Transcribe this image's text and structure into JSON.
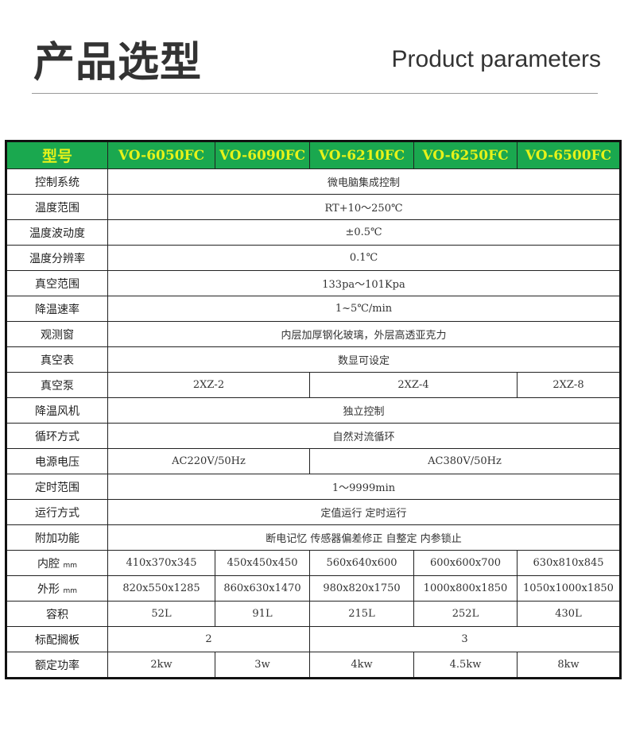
{
  "header": {
    "title_cn": "产品选型",
    "title_en": "Product parameters"
  },
  "colors": {
    "header_bg": "#1aa84f",
    "header_text": "#e6f21a"
  },
  "table": {
    "header": [
      "型号",
      "VO-6050FC",
      "VO-6090FC",
      "VO-6210FC",
      "VO-6250FC",
      "VO-6500FC"
    ],
    "rows": [
      {
        "label": "控制系统",
        "cells": [
          {
            "text": "微电脑集成控制",
            "span": 5
          }
        ]
      },
      {
        "label": "温度范围",
        "cells": [
          {
            "text": "RT+10～250℃",
            "span": 5
          }
        ]
      },
      {
        "label": "温度波动度",
        "cells": [
          {
            "text": "±0.5℃",
            "span": 5
          }
        ]
      },
      {
        "label": "温度分辨率",
        "cells": [
          {
            "text": "0.1℃",
            "span": 5
          }
        ]
      },
      {
        "label": "真空范围",
        "cells": [
          {
            "text": "133pa～101Kpa",
            "span": 5
          }
        ]
      },
      {
        "label": "降温速率",
        "cells": [
          {
            "text": "1~5℃/min",
            "span": 5
          }
        ]
      },
      {
        "label": "观测窗",
        "cells": [
          {
            "text": "内层加厚钢化玻璃，外层高透亚克力",
            "span": 5
          }
        ]
      },
      {
        "label": "真空表",
        "cells": [
          {
            "text": "数显可设定",
            "span": 5
          }
        ]
      },
      {
        "label": "真空泵",
        "cells": [
          {
            "text": "2XZ-2",
            "span": 2
          },
          {
            "text": "2XZ-4",
            "span": 2
          },
          {
            "text": "2XZ-8",
            "span": 1
          }
        ]
      },
      {
        "label": "降温风机",
        "cells": [
          {
            "text": "独立控制",
            "span": 5
          }
        ]
      },
      {
        "label": "循环方式",
        "cells": [
          {
            "text": "自然对流循环",
            "span": 5
          }
        ]
      },
      {
        "label": "电源电压",
        "cells": [
          {
            "text": "AC220V/50Hz",
            "span": 2
          },
          {
            "text": "AC380V/50Hz",
            "span": 3
          }
        ]
      },
      {
        "label": "定时范围",
        "cells": [
          {
            "text": "1～9999min",
            "span": 5
          }
        ]
      },
      {
        "label": "运行方式",
        "cells": [
          {
            "text": "定值运行 定时运行",
            "span": 5
          }
        ]
      },
      {
        "label": "附加功能",
        "cells": [
          {
            "text": "断电记忆 传感器偏差修正 自整定 内参锁止",
            "span": 5
          }
        ]
      },
      {
        "label": "内腔",
        "unit": "mm",
        "cells": [
          {
            "text": "410x370x345",
            "span": 1
          },
          {
            "text": "450x450x450",
            "span": 1
          },
          {
            "text": "560x640x600",
            "span": 1
          },
          {
            "text": "600x600x700",
            "span": 1
          },
          {
            "text": "630x810x845",
            "span": 1
          }
        ]
      },
      {
        "label": "外形",
        "unit": "mm",
        "cells": [
          {
            "text": "820x550x1285",
            "span": 1
          },
          {
            "text": "860x630x1470",
            "span": 1
          },
          {
            "text": "980x820x1750",
            "span": 1
          },
          {
            "text": "1000x800x1850",
            "span": 1
          },
          {
            "text": "1050x1000x1850",
            "span": 1
          }
        ]
      },
      {
        "label": "容积",
        "cells": [
          {
            "text": "52L",
            "span": 1
          },
          {
            "text": "91L",
            "span": 1
          },
          {
            "text": "215L",
            "span": 1
          },
          {
            "text": "252L",
            "span": 1
          },
          {
            "text": "430L",
            "span": 1
          }
        ]
      },
      {
        "label": "标配搁板",
        "cells": [
          {
            "text": "2",
            "span": 2
          },
          {
            "text": "3",
            "span": 3
          }
        ]
      },
      {
        "label": "额定功率",
        "cells": [
          {
            "text": "2kw",
            "span": 1
          },
          {
            "text": "3w",
            "span": 1
          },
          {
            "text": "4kw",
            "span": 1
          },
          {
            "text": "4.5kw",
            "span": 1
          },
          {
            "text": "8kw",
            "span": 1
          }
        ]
      }
    ]
  }
}
